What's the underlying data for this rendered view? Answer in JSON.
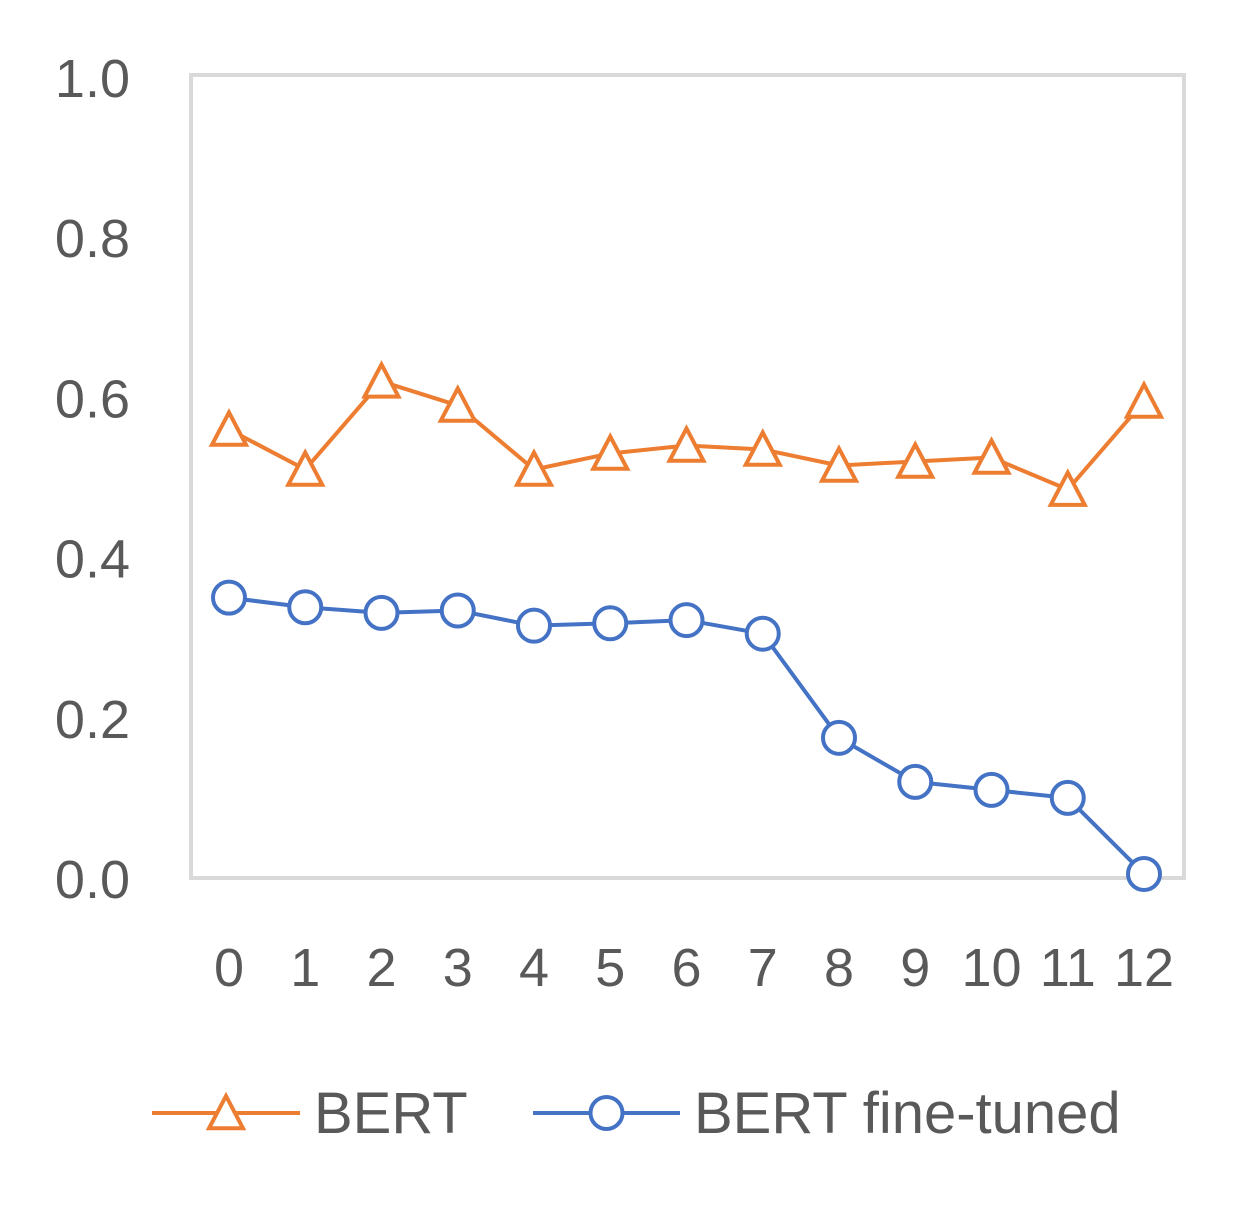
{
  "chart_data": {
    "type": "line",
    "title": "",
    "xlabel": "",
    "ylabel": "",
    "x": [
      "0",
      "1",
      "2",
      "3",
      "4",
      "5",
      "6",
      "7",
      "8",
      "9",
      "10",
      "11",
      "12"
    ],
    "ylim": [
      0.0,
      1.0
    ],
    "y_ticks": [
      "0.0",
      "0.2",
      "0.4",
      "0.6",
      "0.8",
      "1.0"
    ],
    "grid": false,
    "legend_position": "bottom",
    "series": [
      {
        "name": "BERT",
        "marker": "triangle",
        "color": "#ED7D31",
        "values": [
          0.56,
          0.51,
          0.62,
          0.59,
          0.51,
          0.53,
          0.54,
          0.535,
          0.515,
          0.52,
          0.525,
          0.485,
          0.595
        ]
      },
      {
        "name": "BERT fine-tuned",
        "marker": "circle",
        "color": "#4472C4",
        "values": [
          0.35,
          0.338,
          0.331,
          0.334,
          0.315,
          0.318,
          0.322,
          0.305,
          0.175,
          0.12,
          0.11,
          0.1,
          0.005
        ]
      }
    ]
  }
}
